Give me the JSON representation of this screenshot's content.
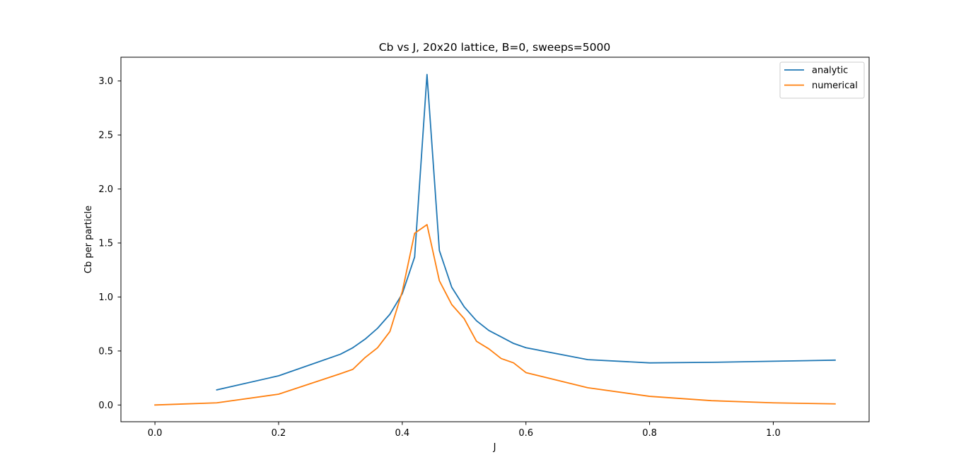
{
  "chart_data": {
    "type": "line",
    "title": "Cb vs J, 20x20 lattice, B=0, sweeps=5000",
    "xlabel": "J",
    "ylabel": "Cb per particle",
    "xlim": [
      -0.055,
      1.155
    ],
    "ylim": [
      -0.155,
      3.22
    ],
    "xticks": [
      0.0,
      0.2,
      0.4,
      0.6,
      0.8,
      1.0
    ],
    "xtick_labels": [
      "0.0",
      "0.2",
      "0.4",
      "0.6",
      "0.8",
      "1.0"
    ],
    "yticks": [
      0.0,
      0.5,
      1.0,
      1.5,
      2.0,
      2.5,
      3.0
    ],
    "ytick_labels": [
      "0.0",
      "0.5",
      "1.0",
      "1.5",
      "2.0",
      "2.5",
      "3.0"
    ],
    "grid": false,
    "legend_position": "top-right",
    "series": [
      {
        "name": "analytic",
        "color": "#1f77b4",
        "x": [
          0.1,
          0.2,
          0.3,
          0.32,
          0.34,
          0.36,
          0.38,
          0.4,
          0.42,
          0.44,
          0.46,
          0.48,
          0.5,
          0.52,
          0.54,
          0.56,
          0.58,
          0.6,
          0.7,
          0.8,
          0.9,
          1.0,
          1.1
        ],
        "y": [
          0.14,
          0.27,
          0.47,
          0.53,
          0.61,
          0.71,
          0.84,
          1.03,
          1.37,
          3.06,
          1.43,
          1.09,
          0.91,
          0.78,
          0.69,
          0.63,
          0.57,
          0.53,
          0.42,
          0.39,
          0.395,
          0.405,
          0.415
        ]
      },
      {
        "name": "numerical",
        "color": "#ff7f0e",
        "x": [
          0.0,
          0.1,
          0.2,
          0.3,
          0.32,
          0.34,
          0.36,
          0.38,
          0.4,
          0.42,
          0.44,
          0.46,
          0.48,
          0.5,
          0.52,
          0.54,
          0.56,
          0.58,
          0.6,
          0.7,
          0.8,
          0.9,
          1.0,
          1.1
        ],
        "y": [
          0.0,
          0.02,
          0.1,
          0.29,
          0.33,
          0.44,
          0.53,
          0.68,
          1.05,
          1.59,
          1.67,
          1.15,
          0.93,
          0.8,
          0.59,
          0.52,
          0.43,
          0.39,
          0.3,
          0.16,
          0.08,
          0.04,
          0.02,
          0.01
        ]
      }
    ]
  }
}
